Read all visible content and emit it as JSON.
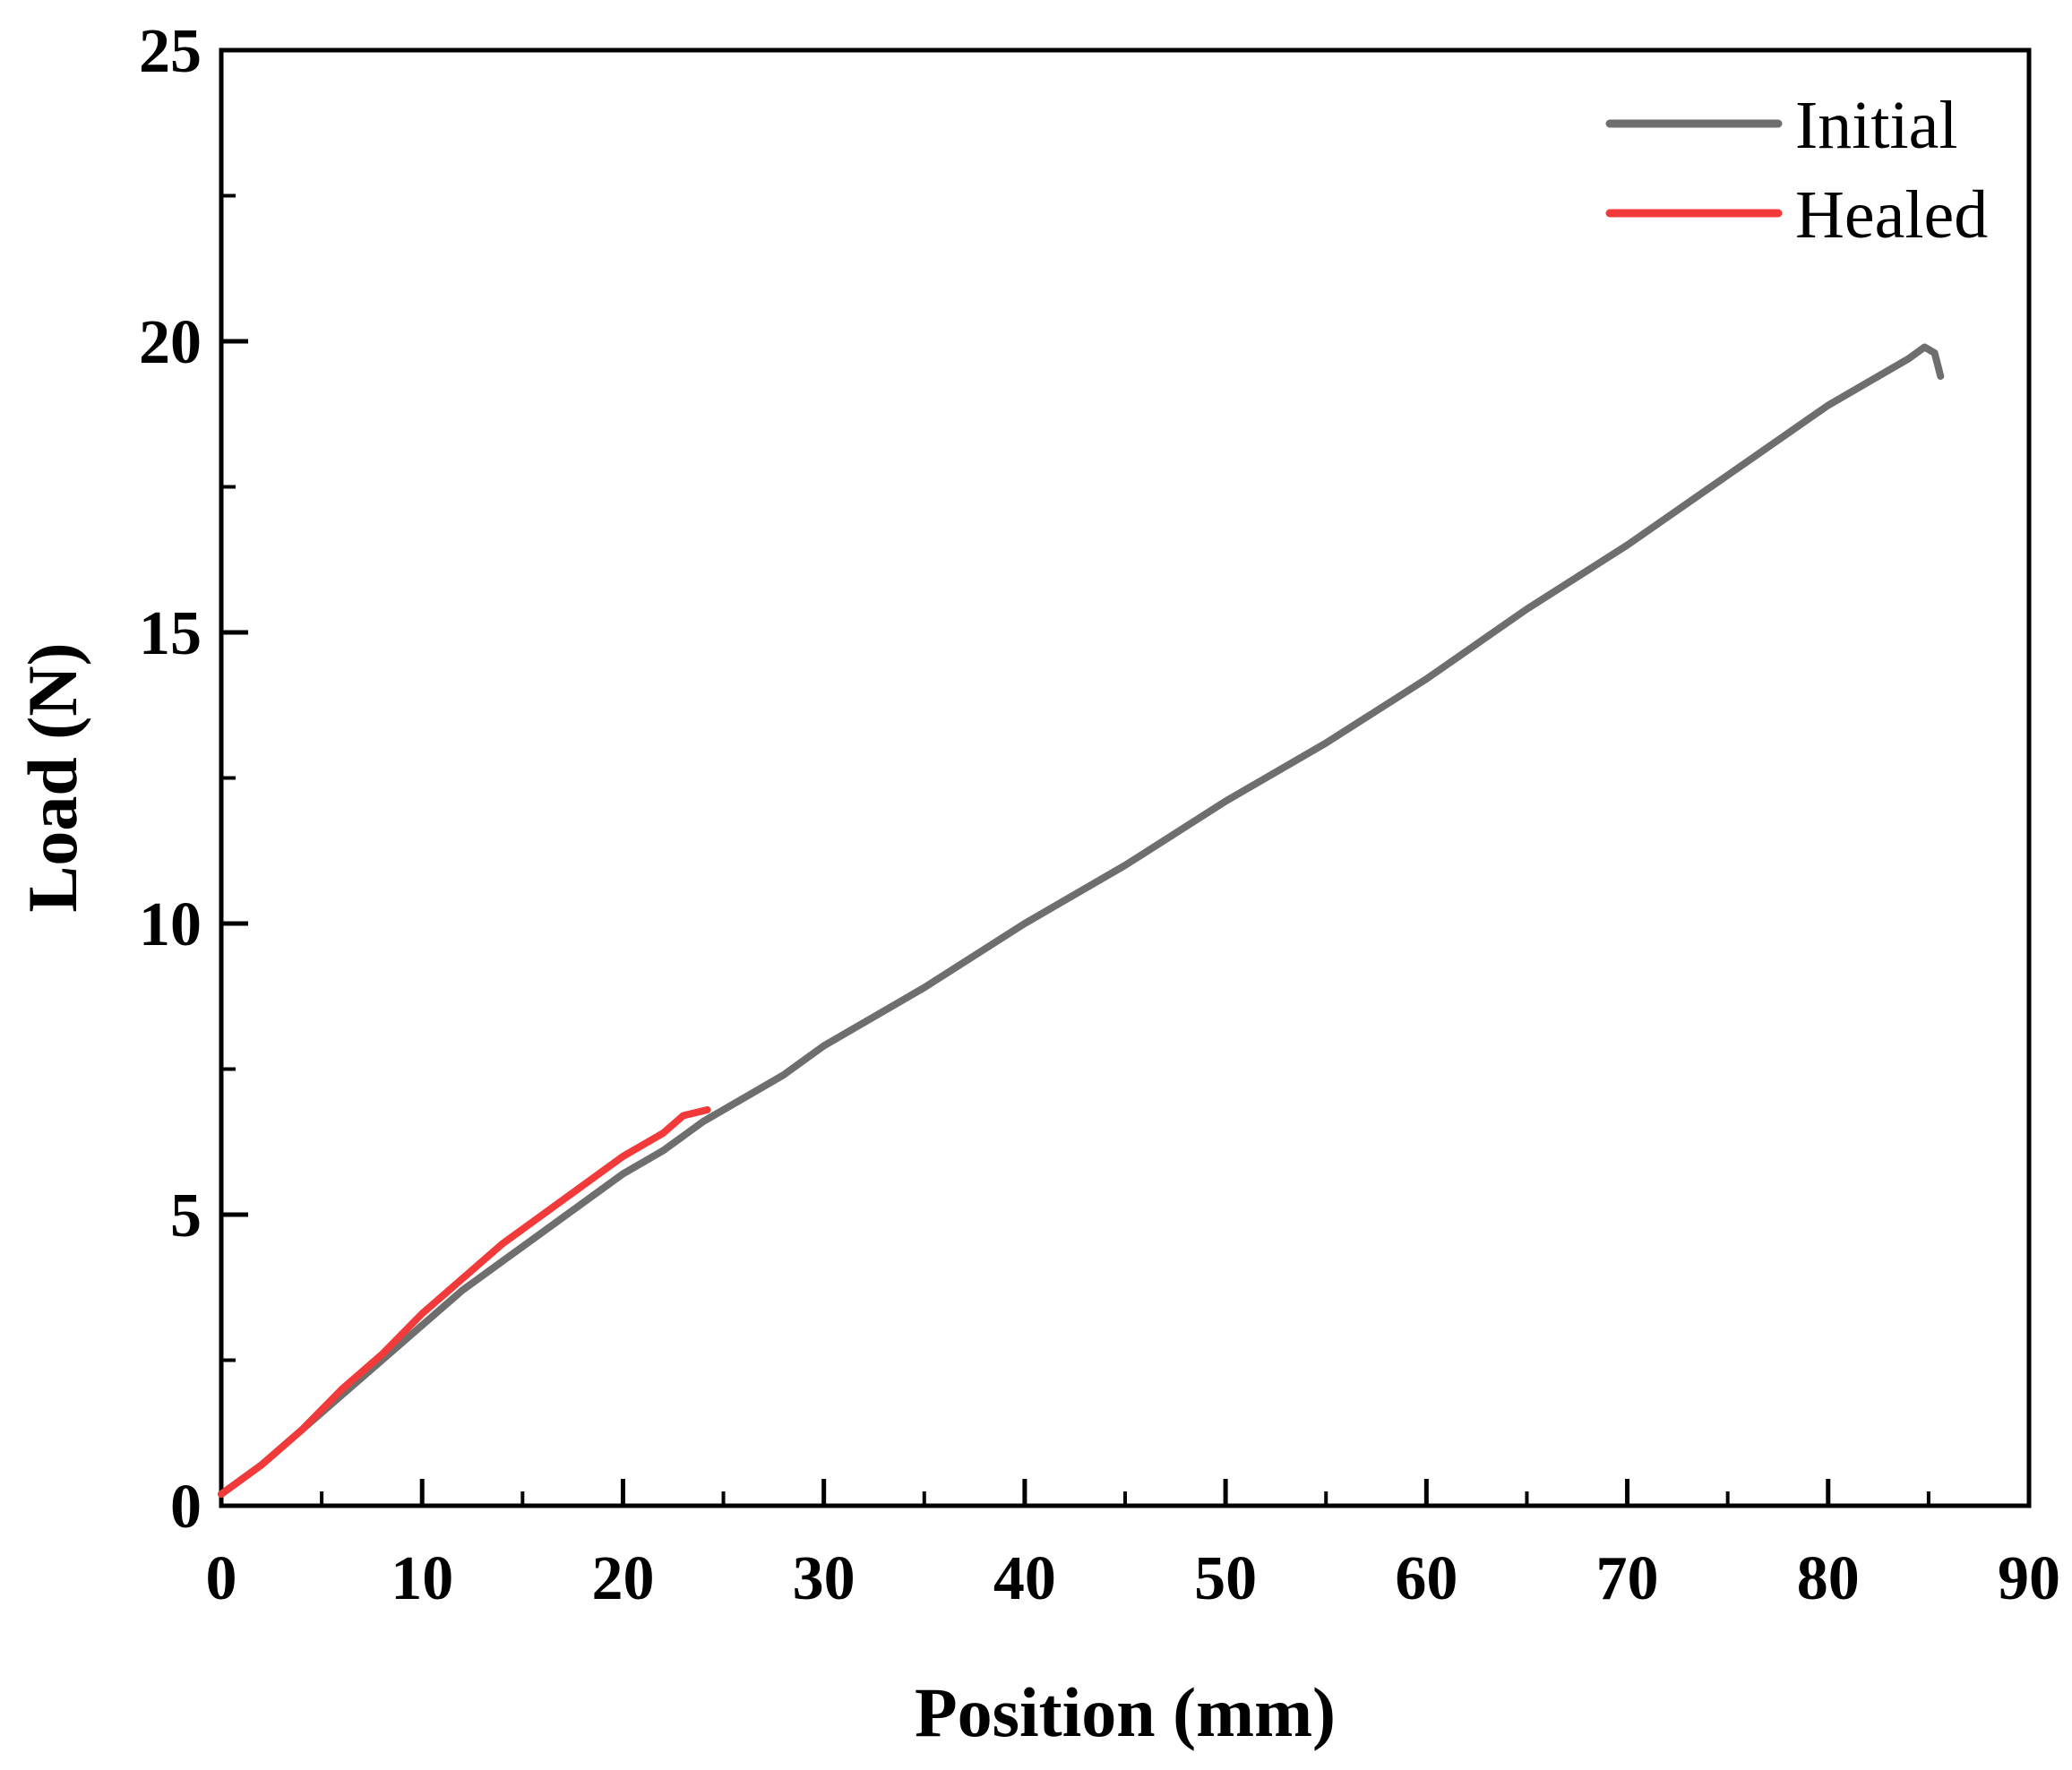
{
  "chart_data": {
    "type": "line",
    "xlabel": "Position (mm)",
    "ylabel": "Load (N)",
    "xlim": [
      0,
      90
    ],
    "ylim": [
      0,
      25
    ],
    "x_ticks": [
      0,
      10,
      20,
      30,
      40,
      50,
      60,
      70,
      80,
      90
    ],
    "y_ticks": [
      0,
      5,
      10,
      15,
      20,
      25
    ],
    "x_tick_labels": [
      "0",
      "10",
      "20",
      "30",
      "40",
      "50",
      "60",
      "70",
      "80",
      "90"
    ],
    "y_tick_labels": [
      "0",
      "5",
      "10",
      "15",
      "20",
      "25"
    ],
    "grid": false,
    "legend_position": "top-right",
    "series": [
      {
        "name": "Initial",
        "color": "#6e6e6e",
        "x": [
          0,
          2,
          4,
          6,
          8,
          10,
          12,
          14,
          16,
          18,
          20,
          22,
          24,
          26,
          28,
          30,
          35,
          40,
          45,
          50,
          55,
          60,
          65,
          70,
          75,
          80,
          82,
          84,
          84.8,
          85.3,
          85.6
        ],
        "y": [
          0.2,
          0.7,
          1.3,
          1.9,
          2.5,
          3.1,
          3.7,
          4.2,
          4.7,
          5.2,
          5.7,
          6.1,
          6.6,
          7.0,
          7.4,
          7.9,
          8.9,
          10.0,
          11.0,
          12.1,
          13.1,
          14.2,
          15.4,
          16.5,
          17.7,
          18.9,
          19.3,
          19.7,
          19.9,
          19.8,
          19.4
        ]
      },
      {
        "name": "Healed",
        "color": "#f23a3a",
        "x": [
          0,
          2,
          4,
          6,
          8,
          10,
          12,
          14,
          16,
          18,
          20,
          22,
          23,
          24.2
        ],
        "y": [
          0.2,
          0.7,
          1.3,
          2.0,
          2.6,
          3.3,
          3.9,
          4.5,
          5.0,
          5.5,
          6.0,
          6.4,
          6.7,
          6.8
        ]
      }
    ]
  }
}
